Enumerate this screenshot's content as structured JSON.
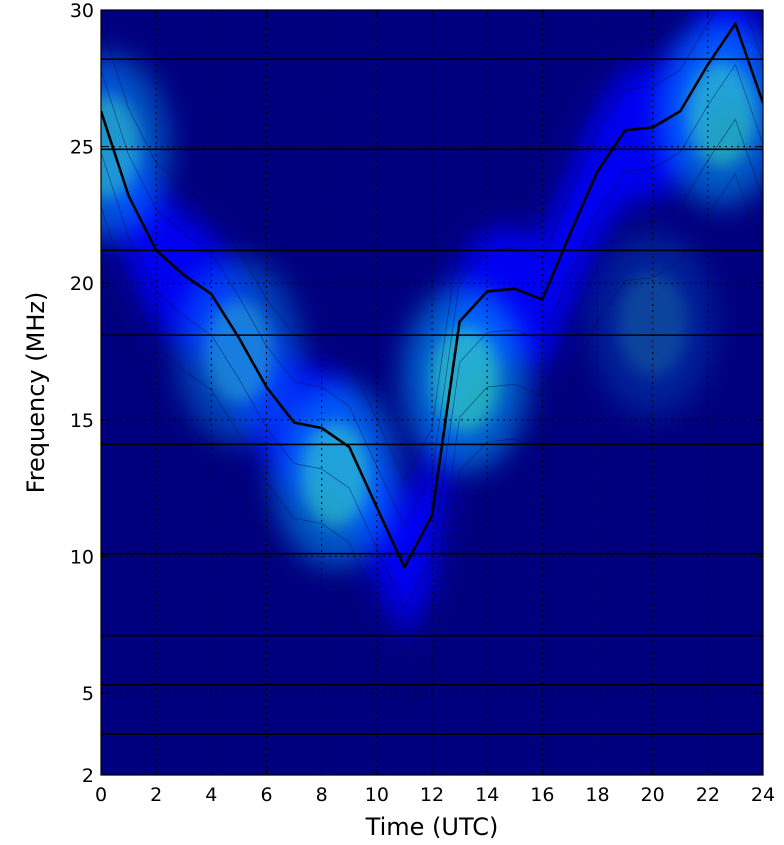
{
  "chart_data": {
    "type": "heatmap",
    "title": "",
    "xlabel": "Time (UTC)",
    "ylabel": "Frequency (MHz)",
    "xlim": [
      0,
      24
    ],
    "ylim": [
      2,
      30
    ],
    "x_ticks": [
      0,
      2,
      4,
      6,
      8,
      10,
      12,
      14,
      16,
      18,
      20,
      22,
      24
    ],
    "y_ticks": [
      2,
      5,
      10,
      15,
      20,
      25,
      30
    ],
    "grid": true,
    "colormap": [
      "#00007f",
      "#0000ff",
      "#00a0ff",
      "#4dffb2",
      "#b2ff4d"
    ],
    "band_lines_mhz": [
      3.5,
      5.3,
      7.1,
      10.1,
      14.1,
      18.1,
      21.2,
      24.9,
      28.2
    ],
    "hotspots": [
      {
        "time": 8.5,
        "freq": 13.0,
        "intensity": 0.55
      },
      {
        "time": 5.0,
        "freq": 17.5,
        "intensity": 0.4
      },
      {
        "time": 13.2,
        "freq": 16.5,
        "intensity": 0.6
      },
      {
        "time": 0.2,
        "freq": 25.0,
        "intensity": 0.5
      },
      {
        "time": 22.5,
        "freq": 26.2,
        "intensity": 0.55
      },
      {
        "time": 20.0,
        "freq": 18.5,
        "intensity": 0.2
      }
    ],
    "series": [
      {
        "x": [
          0,
          1,
          2,
          3,
          4,
          5,
          6,
          7,
          8,
          9,
          10,
          11,
          12,
          13,
          14,
          15,
          16,
          17,
          18,
          19,
          20,
          21,
          22,
          23,
          24
        ],
        "y": [
          26.3,
          23.2,
          21.2,
          20.3,
          19.6,
          18.0,
          16.2,
          14.9,
          14.7,
          14.0,
          11.8,
          9.6,
          11.5,
          18.6,
          19.7,
          19.8,
          19.4,
          21.8,
          24.1,
          25.6,
          25.7,
          26.3,
          28.0,
          29.5,
          26.6
        ]
      }
    ]
  }
}
